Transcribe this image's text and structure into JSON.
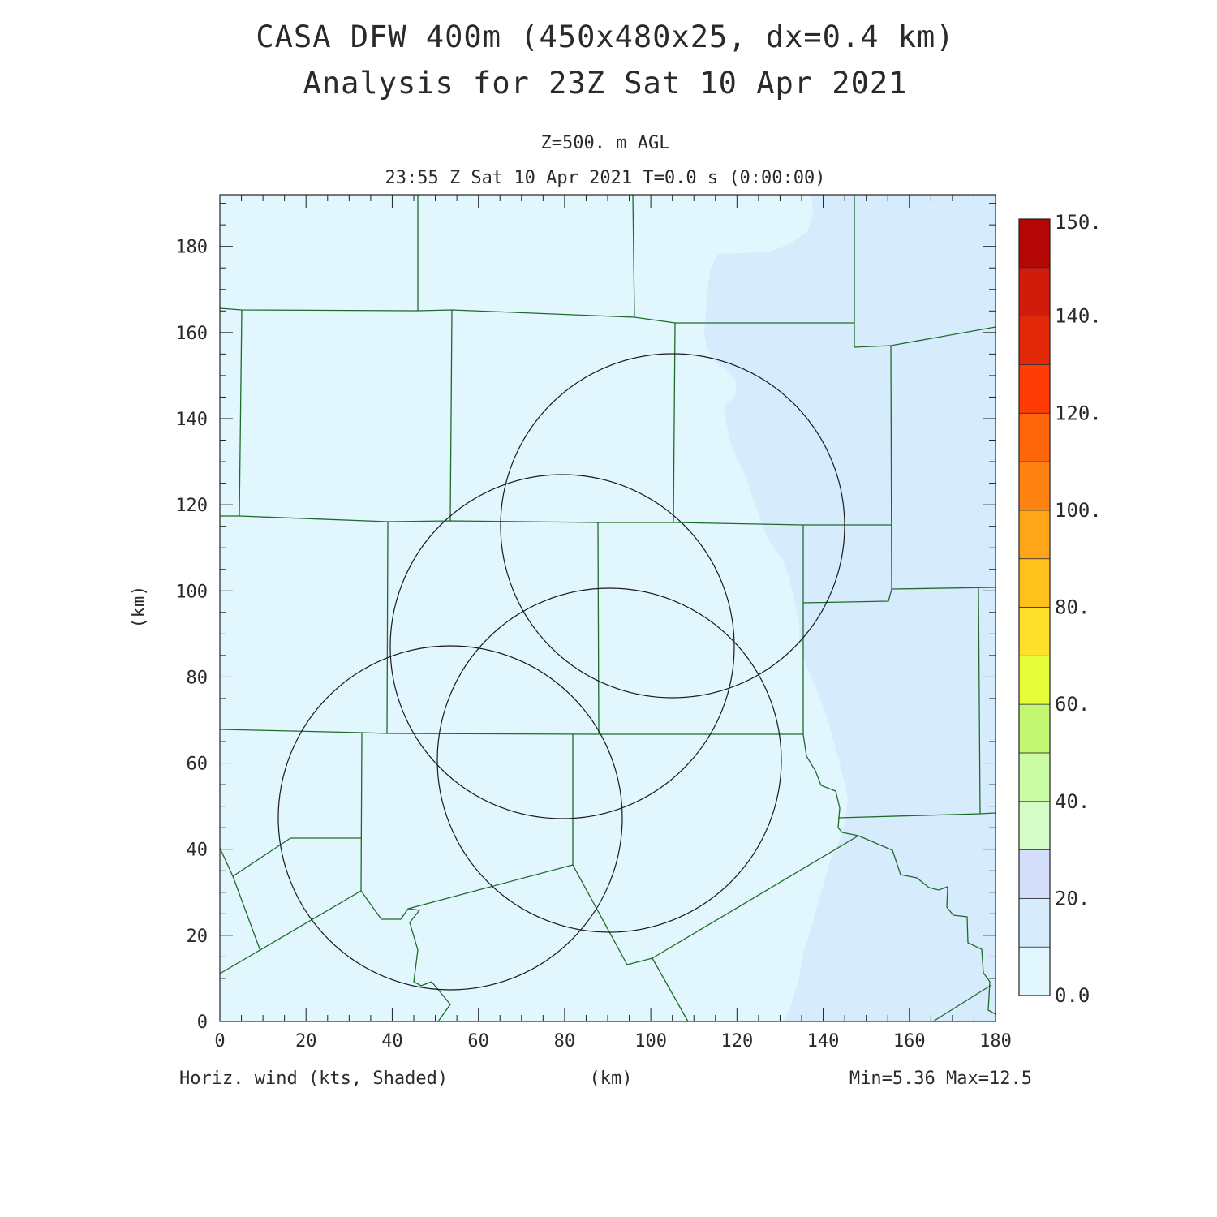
{
  "header": {
    "title_line1": "CASA DFW 400m (450x480x25, dx=0.4 km)",
    "title_line2": "Analysis for 23Z Sat 10 Apr 2021",
    "level": "Z=500. m AGL",
    "valid_time": "23:55 Z Sat 10 Apr 2021    T=0.0 s (0:00:00)"
  },
  "axes": {
    "x_label": "(km)",
    "y_label": "(km)",
    "x_ticks": [
      "0",
      "20",
      "40",
      "60",
      "80",
      "100",
      "120",
      "140",
      "160",
      "180"
    ],
    "y_ticks": [
      "0",
      "20",
      "40",
      "60",
      "80",
      "100",
      "120",
      "140",
      "160",
      "180"
    ],
    "x_range": [
      0,
      180
    ],
    "y_range": [
      0,
      192
    ]
  },
  "footer": {
    "field_label": "Horiz. wind (kts, Shaded)",
    "x_label": "(km)",
    "minmax": "Min=5.36 Max=12.5"
  },
  "colorbar": {
    "labels": [
      "0.0",
      "20.",
      "40.",
      "60.",
      "80.",
      "100.",
      "120.",
      "140.",
      "150."
    ],
    "colors": [
      "#e2f6fe",
      "#d6ecfd",
      "#d4defa",
      "#d5fdc8",
      "#c9fca3",
      "#c3f672",
      "#e5fc38",
      "#fee02a",
      "#ffc11c",
      "#ffa51a",
      "#ff8313",
      "#ff650a",
      "#ff3c06",
      "#e22a0b",
      "#d11c0c",
      "#b50706"
    ]
  },
  "colors": {
    "background_low": "#e2f6fe",
    "background_high": "#d6ecfd",
    "county_lines": "#1e6b2a",
    "radar_rings": "#1a1a1a"
  }
}
